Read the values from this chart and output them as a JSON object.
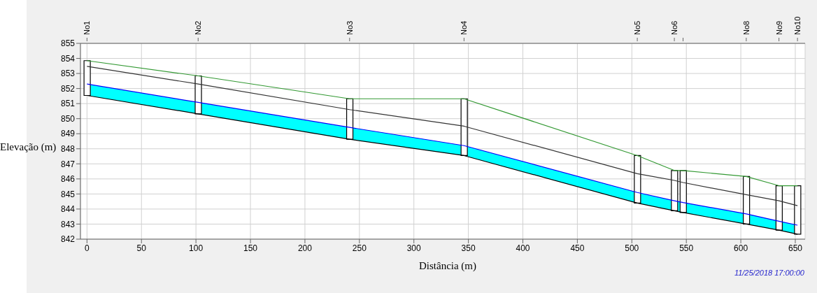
{
  "chart_data": {
    "type": "line",
    "xlabel": "Distância (m)",
    "ylabel": "Elevação (m)",
    "x": [
      0,
      102,
      241,
      346,
      505,
      539,
      547,
      605,
      635,
      652
    ],
    "series": [
      {
        "type": "bar",
        "color": "#000000",
        "base": [
          851.54,
          850.32,
          848.63,
          847.55,
          844.4,
          843.89,
          843.77,
          843.0,
          842.6,
          842.33
        ],
        "values": [
          2.31,
          2.52,
          2.69,
          3.77,
          3.15,
          2.67,
          2.79,
          3.16,
          2.95,
          3.22
        ]
      },
      {
        "type": "line",
        "color": "#0000ff",
        "lower": [
          851.54,
          850.32,
          848.63,
          847.55,
          844.4,
          843.89,
          843.77,
          843.0,
          842.6,
          842.33
        ],
        "upper": [
          852.3,
          851.08,
          849.42,
          848.21,
          845.1,
          844.55,
          844.43,
          843.68,
          843.19,
          842.93
        ],
        "values": [
          852.3,
          851.08,
          849.42,
          848.21,
          845.1,
          844.55,
          844.43,
          843.68,
          843.19,
          842.93
        ]
      },
      {
        "color": "#339933",
        "values": [
          853.85,
          852.84,
          851.32,
          851.32,
          847.55,
          846.56,
          846.56,
          846.16,
          845.55,
          845.55
        ]
      },
      {
        "color": "#333333",
        "values": [
          853.47,
          852.3,
          850.6,
          849.5,
          846.35,
          845.9,
          845.76,
          844.95,
          844.55,
          844.22
        ]
      },
      {
        "type": "line",
        "color": "#000000",
        "values": [
          851.54,
          850.32,
          848.63,
          847.55,
          844.4,
          843.89,
          843.77,
          843.0,
          842.6,
          842.33
        ]
      }
    ],
    "xlim": [
      -6,
      659
    ],
    "xticks": [
      0,
      50,
      100,
      150,
      200,
      250,
      300,
      350,
      400,
      450,
      500,
      550,
      600,
      650
    ],
    "ylim": [
      842,
      855
    ],
    "yticks": [
      842,
      843,
      844,
      845,
      846,
      847,
      848,
      849,
      850,
      851,
      852,
      853,
      854,
      855
    ],
    "grid": true,
    "annotations": [
      {
        "text": "No1",
        "x": 0
      },
      {
        "text": "No2",
        "x": 102
      },
      {
        "text": "No3",
        "x": 241
      },
      {
        "text": "No4",
        "x": 346
      },
      {
        "text": "No5",
        "x": 505
      },
      {
        "text": "No6",
        "x": 539
      },
      {
        "text": "No8",
        "x": 605
      },
      {
        "text": "No9",
        "x": 635
      },
      {
        "text": "No10",
        "x": 652
      },
      "11/25/2018 17:00:00"
    ]
  }
}
